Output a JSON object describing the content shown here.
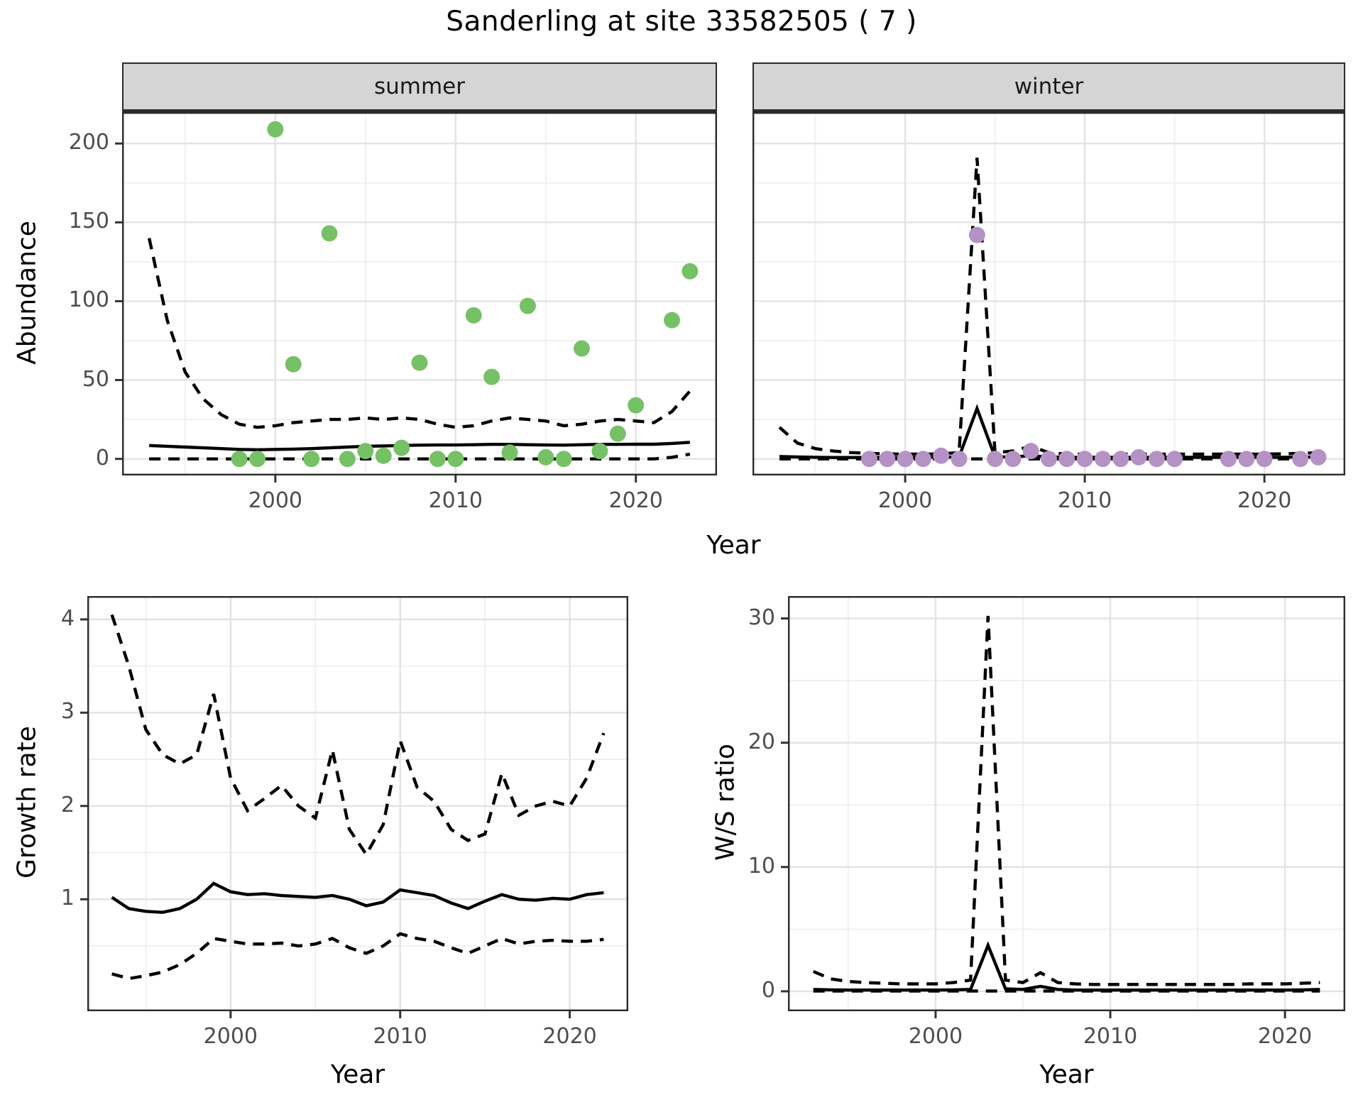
{
  "title": "Sanderling at site 33582505 ( 7 )",
  "axis_titles": {
    "x_top": "Year",
    "x_bottom_left": "Year",
    "x_bottom_right": "Year",
    "y_top": "Abundance",
    "y_bottom_left": "Growth rate",
    "y_bottom_right": "W/S ratio"
  },
  "facets": {
    "summer": "summer",
    "winter": "winter"
  },
  "colors": {
    "summer_point": "#76c166",
    "winter_point": "#b592c6",
    "fit_line": "#000000",
    "ci_line": "#000000",
    "grid_major": "#e3e3e3",
    "grid_minor": "#efefef",
    "panel_border": "#2b2b2b",
    "strip_bg": "#d5d5d5",
    "tick_label": "#4d4d4d"
  },
  "chart_data": [
    {
      "id": "abundance-summer",
      "type": "scatter",
      "facet": "summer",
      "xlabel": "Year",
      "ylabel": "Abundance",
      "xlim": [
        1991.5,
        2024.5
      ],
      "ylim": [
        -10.5,
        219.9
      ],
      "xticks": [
        2000,
        2010,
        2020
      ],
      "yticks": [
        0,
        50,
        100,
        150,
        200
      ],
      "xticks_minor": [
        1995,
        2005,
        2015
      ],
      "yticks_minor": [
        25,
        75,
        125,
        175
      ],
      "show_yticklabels": true,
      "point_color_key": "summer_point",
      "points": {
        "years": [
          1998,
          1999,
          2000,
          2001,
          2002,
          2003,
          2004,
          2005,
          2006,
          2007,
          2008,
          2009,
          2010,
          2011,
          2012,
          2013,
          2014,
          2015,
          2016,
          2017,
          2018,
          2019,
          2020,
          2022,
          2023
        ],
        "values": [
          0,
          0,
          209,
          60,
          0,
          143,
          0,
          5,
          2,
          7,
          61,
          0,
          0,
          91,
          52,
          4,
          97,
          1,
          0,
          70,
          5,
          16,
          34,
          88,
          119
        ]
      },
      "fit": {
        "years": [
          1993,
          1994,
          1995,
          1996,
          1997,
          1998,
          1999,
          2000,
          2001,
          2002,
          2003,
          2004,
          2005,
          2006,
          2007,
          2008,
          2009,
          2010,
          2011,
          2012,
          2013,
          2014,
          2015,
          2016,
          2017,
          2018,
          2019,
          2020,
          2021,
          2022,
          2023
        ],
        "mean": [
          8.5,
          8,
          7.5,
          7,
          6.5,
          6,
          5.8,
          6,
          6.2,
          6.5,
          7,
          7.5,
          8,
          8.2,
          8.5,
          8.7,
          8.8,
          8.8,
          9,
          9.2,
          9.2,
          9,
          8.8,
          8.7,
          9,
          9.2,
          9.2,
          9.3,
          9.3,
          9.8,
          10.5
        ],
        "upper": [
          140,
          88,
          55,
          38,
          28,
          22,
          20,
          21,
          23,
          24,
          25,
          25,
          26,
          25,
          26,
          25,
          22,
          20,
          21,
          24,
          26,
          25,
          24,
          21,
          22,
          24,
          25,
          24,
          23,
          30,
          43
        ],
        "lower": [
          0,
          0,
          0,
          0,
          0,
          0,
          0,
          0,
          0,
          0,
          0,
          0,
          0,
          0,
          0,
          0,
          0,
          0,
          0,
          0,
          0,
          0,
          0,
          0,
          0,
          0,
          0,
          0,
          0,
          1,
          3
        ]
      }
    },
    {
      "id": "abundance-winter",
      "type": "scatter",
      "facet": "winter",
      "xlabel": "Year",
      "ylabel": "Abundance",
      "xlim": [
        1991.5,
        2024.5
      ],
      "ylim": [
        -10.5,
        219.9
      ],
      "xticks": [
        2000,
        2010,
        2020
      ],
      "yticks": [
        0,
        50,
        100,
        150,
        200
      ],
      "xticks_minor": [
        1995,
        2005,
        2015
      ],
      "yticks_minor": [
        25,
        75,
        125,
        175
      ],
      "show_yticklabels": false,
      "point_color_key": "winter_point",
      "points": {
        "years": [
          1998,
          1999,
          2000,
          2001,
          2002,
          2003,
          2004,
          2005,
          2006,
          2007,
          2008,
          2009,
          2010,
          2011,
          2012,
          2013,
          2014,
          2015,
          2018,
          2019,
          2020,
          2022,
          2023
        ],
        "values": [
          0,
          0,
          0,
          0,
          2,
          0,
          142,
          0,
          0,
          5,
          0,
          0,
          0,
          0,
          0,
          1,
          0,
          0,
          0,
          0,
          0,
          0,
          1
        ]
      },
      "fit": {
        "years": [
          1993,
          1994,
          1995,
          1996,
          1997,
          1998,
          1999,
          2000,
          2001,
          2002,
          2003,
          2004,
          2005,
          2006,
          2007,
          2008,
          2009,
          2010,
          2011,
          2012,
          2013,
          2014,
          2015,
          2016,
          2017,
          2018,
          2019,
          2020,
          2021,
          2022,
          2023
        ],
        "mean": [
          1.5,
          1.2,
          1,
          0.9,
          0.9,
          0.9,
          0.9,
          0.9,
          1,
          1.1,
          1.2,
          32,
          1.2,
          1.3,
          2,
          1.2,
          1,
          1,
          1,
          1,
          1,
          1,
          1,
          1,
          1,
          1,
          1,
          1,
          1,
          1.1,
          1.2
        ],
        "upper": [
          20,
          10,
          6.5,
          5,
          4,
          3.5,
          3.2,
          3,
          3,
          3.2,
          4,
          191,
          4,
          5,
          8,
          4,
          3,
          3,
          3,
          3,
          3,
          3,
          3,
          3,
          3,
          3,
          3,
          3,
          3.2,
          3.5,
          4
        ],
        "lower": [
          0,
          0,
          0,
          0,
          0,
          0,
          0,
          0,
          0,
          0,
          0,
          0,
          0,
          0,
          0,
          0,
          0,
          0,
          0,
          0,
          0,
          0,
          0,
          0,
          0,
          0,
          0,
          0,
          0,
          0,
          0
        ]
      }
    },
    {
      "id": "growth-rate",
      "type": "line",
      "facet": null,
      "xlabel": "Year",
      "ylabel": "Growth rate",
      "xlim": [
        1991.55,
        2023.45
      ],
      "ylim": [
        -0.2,
        4.25
      ],
      "xticks": [
        2000,
        2010,
        2020
      ],
      "yticks": [
        1,
        2,
        3,
        4
      ],
      "xticks_minor": [
        1995,
        2005,
        2015
      ],
      "yticks_minor": [
        0.5,
        1.5,
        2.5,
        3.5
      ],
      "show_yticklabels": true,
      "point_color_key": null,
      "points": {
        "years": [],
        "values": []
      },
      "fit": {
        "years": [
          1993,
          1994,
          1995,
          1996,
          1997,
          1998,
          1999,
          2000,
          2001,
          2002,
          2003,
          2004,
          2005,
          2006,
          2007,
          2008,
          2009,
          2010,
          2011,
          2012,
          2013,
          2014,
          2015,
          2016,
          2017,
          2018,
          2019,
          2020,
          2021,
          2022
        ],
        "mean": [
          1.02,
          0.9,
          0.87,
          0.86,
          0.9,
          1.0,
          1.17,
          1.08,
          1.05,
          1.06,
          1.04,
          1.03,
          1.02,
          1.04,
          1.0,
          0.93,
          0.97,
          1.1,
          1.07,
          1.04,
          0.96,
          0.9,
          0.98,
          1.05,
          1.0,
          0.99,
          1.01,
          1.0,
          1.05,
          1.07
        ],
        "upper": [
          4.05,
          3.5,
          2.82,
          2.55,
          2.45,
          2.55,
          3.2,
          2.3,
          1.95,
          2.08,
          2.22,
          2.0,
          1.87,
          2.6,
          1.75,
          1.48,
          1.8,
          2.7,
          2.2,
          2.05,
          1.75,
          1.63,
          1.7,
          2.35,
          1.9,
          2.0,
          2.05,
          2.0,
          2.3,
          2.78
        ],
        "lower": [
          0.2,
          0.15,
          0.18,
          0.22,
          0.3,
          0.42,
          0.58,
          0.55,
          0.52,
          0.52,
          0.53,
          0.5,
          0.52,
          0.58,
          0.48,
          0.42,
          0.5,
          0.63,
          0.58,
          0.55,
          0.48,
          0.42,
          0.5,
          0.58,
          0.52,
          0.55,
          0.56,
          0.55,
          0.55,
          0.57
        ]
      }
    },
    {
      "id": "ws-ratio",
      "type": "line",
      "facet": null,
      "xlabel": "Year",
      "ylabel": "W/S ratio",
      "xlim": [
        1991.55,
        2023.45
      ],
      "ylim": [
        -1.6,
        31.8
      ],
      "xticks": [
        2000,
        2010,
        2020
      ],
      "yticks": [
        0,
        10,
        20,
        30
      ],
      "xticks_minor": [
        1995,
        2005,
        2015
      ],
      "yticks_minor": [
        5,
        15,
        25
      ],
      "show_yticklabels": true,
      "point_color_key": null,
      "points": {
        "years": [],
        "values": []
      },
      "fit": {
        "years": [
          1993,
          1994,
          1995,
          1996,
          1997,
          1998,
          1999,
          2000,
          2001,
          2002,
          2003,
          2004,
          2005,
          2006,
          2007,
          2008,
          2009,
          2010,
          2011,
          2012,
          2013,
          2014,
          2015,
          2016,
          2017,
          2018,
          2019,
          2020,
          2021,
          2022
        ],
        "mean": [
          0.15,
          0.12,
          0.1,
          0.1,
          0.1,
          0.1,
          0.1,
          0.1,
          0.12,
          0.15,
          3.7,
          0.2,
          0.15,
          0.4,
          0.15,
          0.1,
          0.1,
          0.1,
          0.1,
          0.1,
          0.1,
          0.1,
          0.1,
          0.1,
          0.1,
          0.1,
          0.1,
          0.1,
          0.12,
          0.15
        ],
        "upper": [
          1.6,
          1.0,
          0.8,
          0.7,
          0.65,
          0.6,
          0.6,
          0.6,
          0.7,
          0.9,
          30.2,
          0.9,
          0.7,
          1.5,
          0.7,
          0.6,
          0.55,
          0.55,
          0.55,
          0.55,
          0.55,
          0.55,
          0.55,
          0.55,
          0.55,
          0.6,
          0.6,
          0.6,
          0.65,
          0.7
        ],
        "lower": [
          0.02,
          0.02,
          0.02,
          0.02,
          0.02,
          0.02,
          0.02,
          0.02,
          0.02,
          0.02,
          0.02,
          0.02,
          0.02,
          0.02,
          0.02,
          0.02,
          0.02,
          0.02,
          0.02,
          0.02,
          0.02,
          0.02,
          0.02,
          0.02,
          0.02,
          0.02,
          0.02,
          0.02,
          0.02,
          0.02
        ]
      }
    }
  ]
}
